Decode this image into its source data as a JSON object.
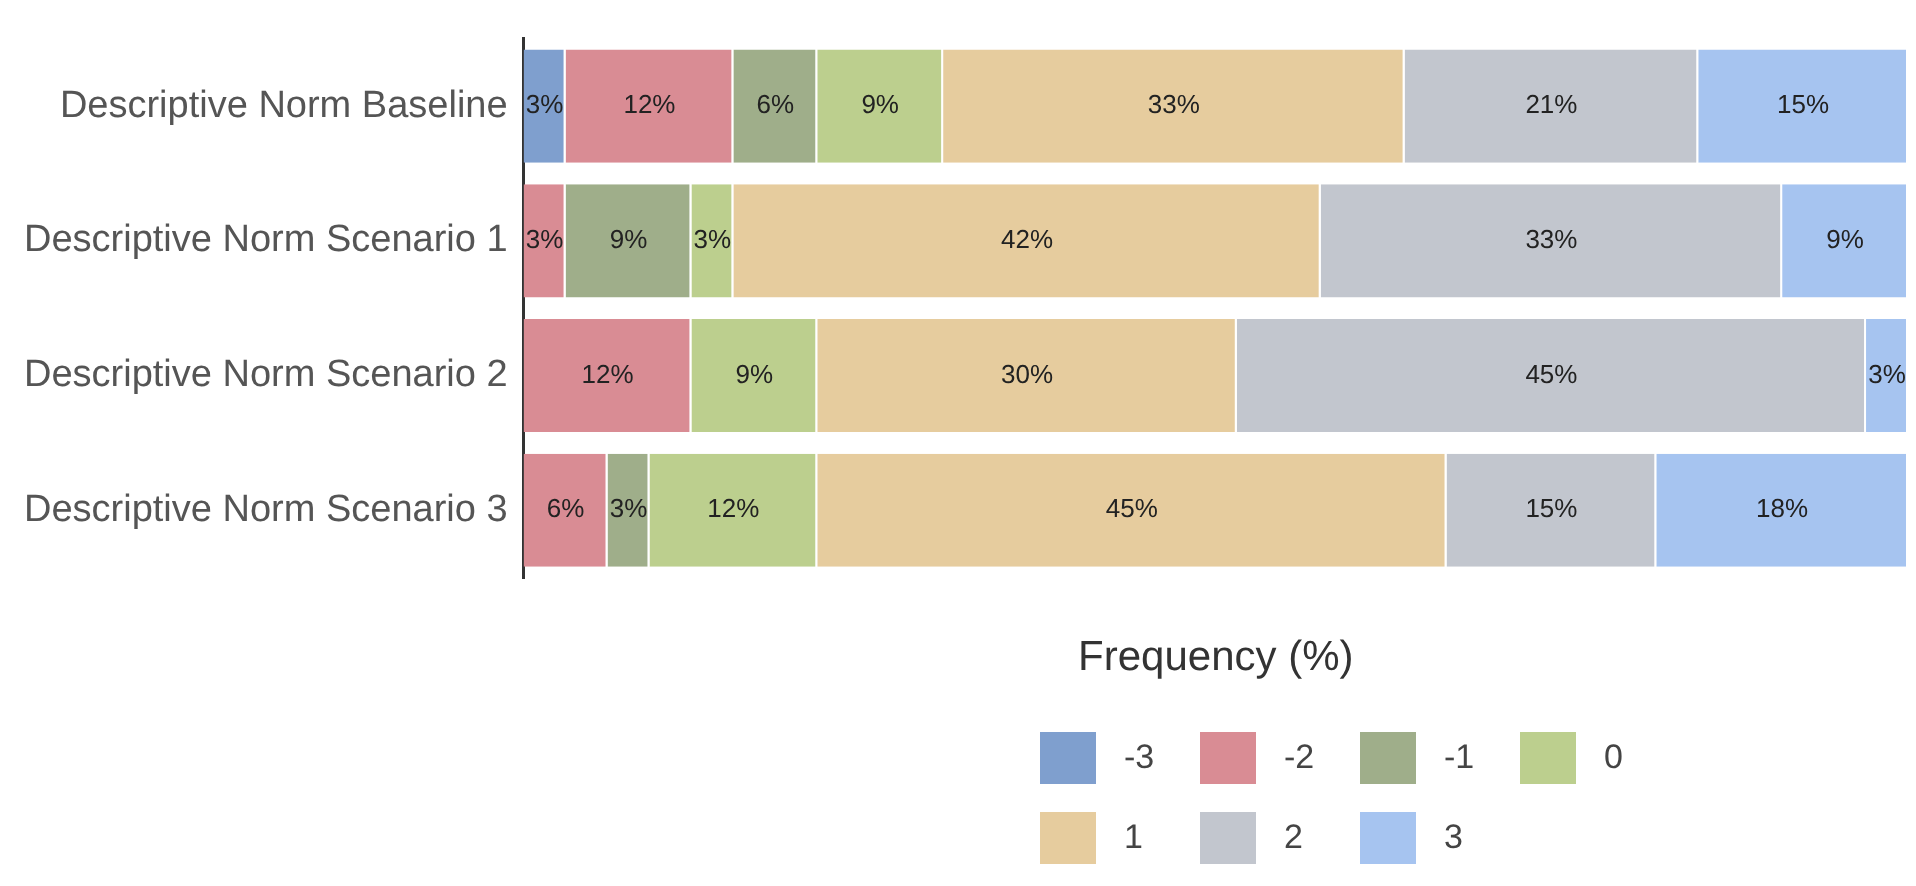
{
  "chart_data": {
    "type": "bar",
    "orientation": "horizontal",
    "stacked": true,
    "legend": "bottom",
    "xlabel": "Frequency (%)",
    "categories": [
      "Descriptive Norm Baseline",
      "Descriptive Norm Scenario 1",
      "Descriptive Norm Scenario 2",
      "Descriptive Norm Scenario 3"
    ],
    "series": [
      {
        "name": "-3",
        "color": "#7f9fce",
        "values": [
          3,
          null,
          null,
          null
        ],
        "value_labels": [
          "3%",
          null,
          null,
          null
        ]
      },
      {
        "name": "-2",
        "color": "#d98c94",
        "values": [
          12,
          3,
          12,
          6
        ],
        "value_labels": [
          "12%",
          "3%",
          "12%",
          "6%"
        ]
      },
      {
        "name": "-1",
        "color": "#9fae8a",
        "values": [
          6,
          9,
          null,
          3
        ],
        "value_labels": [
          "6%",
          "9%",
          null,
          "3%"
        ]
      },
      {
        "name": "0",
        "color": "#bccf8e",
        "values": [
          9,
          3,
          9,
          12
        ],
        "value_labels": [
          "9%",
          "3%",
          "9%",
          "12%"
        ]
      },
      {
        "name": "1",
        "color": "#e6cc9e",
        "values": [
          33,
          42,
          30,
          45
        ],
        "value_labels": [
          "33%",
          "42%",
          "30%",
          "45%"
        ]
      },
      {
        "name": "2",
        "color": "#c2c6ce",
        "values": [
          21,
          33,
          45,
          15
        ],
        "value_labels": [
          "21%",
          "33%",
          "45%",
          "15%"
        ]
      },
      {
        "name": "3",
        "color": "#a6c4f0",
        "values": [
          15,
          9,
          3,
          18
        ],
        "value_labels": [
          "15%",
          "9%",
          "3%",
          "18%"
        ]
      }
    ]
  }
}
